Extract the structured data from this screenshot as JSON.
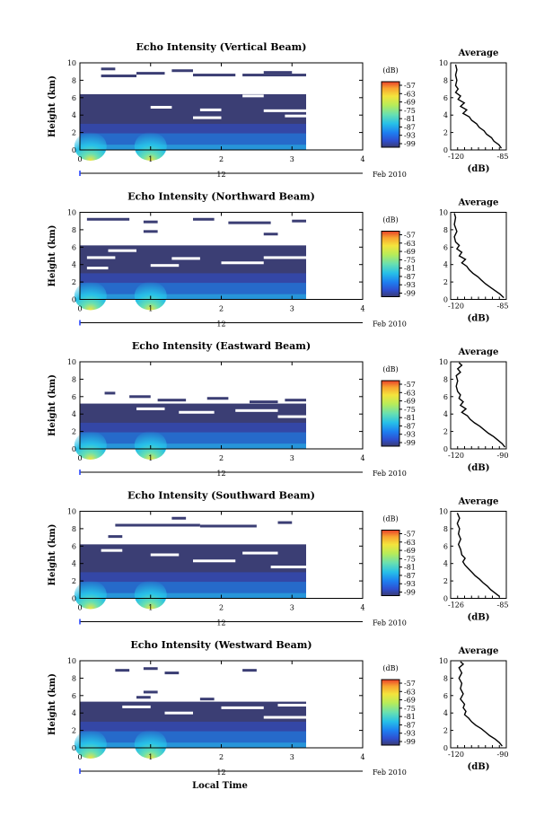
{
  "figure": {
    "xlabel": "Local Time",
    "colors": {
      "background": "#ffffff",
      "base_echo": "#3b3e74",
      "colormap": [
        "#3a3b72",
        "#2f4fd0",
        "#1e7ef0",
        "#27c0e8",
        "#69e0b0",
        "#b6ec5a",
        "#f4e43c",
        "#f8a430",
        "#e8402a"
      ]
    }
  },
  "chart_data": [
    {
      "type": "heatmap",
      "title": "Echo Intensity (Vertical Beam)",
      "ylabel": "Height (km)",
      "ylim": [
        0,
        10
      ],
      "yticks": [
        "0",
        "2",
        "4",
        "6",
        "8",
        "10"
      ],
      "xlim": [
        0,
        4
      ],
      "xticks": [
        "0",
        "1",
        "2",
        "3",
        "4"
      ],
      "data_extent_x": 3.2,
      "day_marker": "12",
      "date_label": "Feb 2010",
      "colorbar": {
        "unit": "(dB)",
        "ticks": [
          "-57",
          "-63",
          "-69",
          "-75",
          "-81",
          "-87",
          "-93",
          "-99"
        ]
      },
      "main_layer_top_km": 6.4,
      "upper_segments": [
        {
          "x0": 0.3,
          "x1": 0.5,
          "y": 9.3
        },
        {
          "x0": 0.3,
          "x1": 0.8,
          "y": 8.5
        },
        {
          "x0": 0.8,
          "x1": 1.2,
          "y": 8.8
        },
        {
          "x0": 1.3,
          "x1": 1.6,
          "y": 9.1
        },
        {
          "x0": 1.6,
          "x1": 2.2,
          "y": 8.6
        },
        {
          "x0": 2.3,
          "x1": 3.2,
          "y": 8.6
        },
        {
          "x0": 2.6,
          "x1": 3.0,
          "y": 8.9
        }
      ],
      "gaps": [
        {
          "x0": 0.7,
          "x1": 1.0,
          "y": 6.7
        },
        {
          "x0": 1.7,
          "x1": 2.0,
          "y": 4.6
        },
        {
          "x0": 1.6,
          "x1": 2.0,
          "y": 3.7
        },
        {
          "x0": 2.6,
          "x1": 3.2,
          "y": 4.5
        },
        {
          "x0": 2.9,
          "x1": 3.2,
          "y": 3.9
        },
        {
          "x0": 1.0,
          "x1": 1.3,
          "y": 4.9
        },
        {
          "x0": 2.3,
          "x1": 2.6,
          "y": 6.2
        }
      ],
      "average_profile": {
        "xlabel": "(dB)",
        "title": "Average",
        "xticks": [
          "-120",
          "-85"
        ],
        "xlim": [
          -125,
          -80
        ],
        "ylim": [
          0,
          10
        ],
        "yticks": [
          "0",
          "2",
          "4",
          "6",
          "8",
          "10"
        ],
        "points": [
          [
            -84,
            0.2
          ],
          [
            -86,
            0.6
          ],
          [
            -90,
            1.0
          ],
          [
            -92,
            1.4
          ],
          [
            -96,
            1.8
          ],
          [
            -98,
            2.2
          ],
          [
            -102,
            2.6
          ],
          [
            -104,
            3.0
          ],
          [
            -108,
            3.4
          ],
          [
            -110,
            3.8
          ],
          [
            -115,
            4.2
          ],
          [
            -112,
            4.6
          ],
          [
            -117,
            5.0
          ],
          [
            -114,
            5.4
          ],
          [
            -119,
            5.8
          ],
          [
            -117,
            6.2
          ],
          [
            -121,
            6.6
          ],
          [
            -119,
            7.0
          ],
          [
            -121,
            7.4
          ],
          [
            -120,
            8.0
          ],
          [
            -121,
            8.6
          ],
          [
            -120,
            9.2
          ],
          [
            -121,
            9.8
          ]
        ]
      }
    },
    {
      "type": "heatmap",
      "title": "Echo Intensity (Northward Beam)",
      "ylabel": "Height (km)",
      "ylim": [
        0,
        10
      ],
      "yticks": [
        "0",
        "2",
        "4",
        "6",
        "8",
        "10"
      ],
      "xlim": [
        0,
        4
      ],
      "xticks": [
        "0",
        "1",
        "2",
        "3",
        "4"
      ],
      "data_extent_x": 3.2,
      "day_marker": "12",
      "date_label": "Feb 2010",
      "colorbar": {
        "unit": "(dB)",
        "ticks": [
          "-57",
          "-63",
          "-69",
          "-75",
          "-81",
          "-87",
          "-93",
          "-99"
        ]
      },
      "main_layer_top_km": 6.2,
      "upper_segments": [
        {
          "x0": 0.1,
          "x1": 0.7,
          "y": 9.2
        },
        {
          "x0": 0.9,
          "x1": 1.1,
          "y": 8.9
        },
        {
          "x0": 0.9,
          "x1": 1.1,
          "y": 7.8
        },
        {
          "x0": 1.6,
          "x1": 1.9,
          "y": 9.2
        },
        {
          "x0": 2.1,
          "x1": 2.7,
          "y": 8.8
        },
        {
          "x0": 2.6,
          "x1": 2.8,
          "y": 7.5
        },
        {
          "x0": 3.0,
          "x1": 3.2,
          "y": 9.0
        }
      ],
      "gaps": [
        {
          "x0": 0.4,
          "x1": 0.8,
          "y": 5.6
        },
        {
          "x0": 0.1,
          "x1": 0.5,
          "y": 4.8
        },
        {
          "x0": 1.3,
          "x1": 1.7,
          "y": 4.7
        },
        {
          "x0": 2.0,
          "x1": 2.6,
          "y": 4.2
        },
        {
          "x0": 2.6,
          "x1": 3.2,
          "y": 4.8
        },
        {
          "x0": 0.1,
          "x1": 0.4,
          "y": 3.6
        },
        {
          "x0": 1.0,
          "x1": 1.4,
          "y": 3.9
        }
      ],
      "average_profile": {
        "xlabel": "(dB)",
        "title": "Average",
        "xticks": [
          "-120",
          "-85"
        ],
        "xlim": [
          -125,
          -80
        ],
        "ylim": [
          0,
          10
        ],
        "yticks": [
          "0",
          "2",
          "4",
          "6",
          "8",
          "10"
        ],
        "points": [
          [
            -82,
            0.2
          ],
          [
            -85,
            0.6
          ],
          [
            -89,
            1.0
          ],
          [
            -93,
            1.4
          ],
          [
            -97,
            1.8
          ],
          [
            -100,
            2.2
          ],
          [
            -103,
            2.6
          ],
          [
            -107,
            3.0
          ],
          [
            -110,
            3.4
          ],
          [
            -112,
            3.8
          ],
          [
            -116,
            4.2
          ],
          [
            -113,
            4.6
          ],
          [
            -118,
            5.0
          ],
          [
            -116,
            5.4
          ],
          [
            -120,
            5.8
          ],
          [
            -118,
            6.2
          ],
          [
            -121,
            6.6
          ],
          [
            -122,
            7.2
          ],
          [
            -120,
            7.8
          ],
          [
            -122,
            8.6
          ],
          [
            -121,
            9.4
          ],
          [
            -122,
            9.9
          ]
        ]
      }
    },
    {
      "type": "heatmap",
      "title": "Echo Intensity (Eastward Beam)",
      "ylabel": "Height (km)",
      "ylim": [
        0,
        10
      ],
      "yticks": [
        "0",
        "2",
        "4",
        "6",
        "8",
        "10"
      ],
      "xlim": [
        0,
        4
      ],
      "xticks": [
        "0",
        "1",
        "2",
        "3",
        "4"
      ],
      "data_extent_x": 3.2,
      "day_marker": "12",
      "date_label": "Feb 2010",
      "colorbar": {
        "unit": "(dB)",
        "ticks": [
          "-57",
          "-63",
          "-69",
          "-75",
          "-81",
          "-87",
          "-93",
          "-99"
        ]
      },
      "main_layer_top_km": 5.2,
      "upper_segments": [
        {
          "x0": 0.35,
          "x1": 0.5,
          "y": 6.4
        },
        {
          "x0": 0.7,
          "x1": 1.0,
          "y": 6.0
        },
        {
          "x0": 1.1,
          "x1": 1.5,
          "y": 5.6
        },
        {
          "x0": 1.8,
          "x1": 2.1,
          "y": 5.8
        },
        {
          "x0": 2.4,
          "x1": 2.8,
          "y": 5.4
        },
        {
          "x0": 2.9,
          "x1": 3.2,
          "y": 5.6
        }
      ],
      "gaps": [
        {
          "x0": 0.8,
          "x1": 1.2,
          "y": 4.6
        },
        {
          "x0": 1.4,
          "x1": 1.9,
          "y": 4.2
        },
        {
          "x0": 2.2,
          "x1": 2.8,
          "y": 4.4
        },
        {
          "x0": 2.8,
          "x1": 3.2,
          "y": 3.7
        }
      ],
      "average_profile": {
        "xlabel": "(dB)",
        "title": "Average",
        "xticks": [
          "-120",
          "-90"
        ],
        "xlim": [
          -125,
          -85
        ],
        "ylim": [
          0,
          10
        ],
        "yticks": [
          "0",
          "2",
          "4",
          "6",
          "8",
          "10"
        ],
        "points": [
          [
            -86,
            0.2
          ],
          [
            -88,
            0.6
          ],
          [
            -91,
            1.0
          ],
          [
            -94,
            1.4
          ],
          [
            -98,
            1.8
          ],
          [
            -101,
            2.2
          ],
          [
            -104,
            2.6
          ],
          [
            -108,
            3.0
          ],
          [
            -111,
            3.4
          ],
          [
            -113,
            3.8
          ],
          [
            -117,
            4.2
          ],
          [
            -114,
            4.6
          ],
          [
            -118,
            5.0
          ],
          [
            -116,
            5.4
          ],
          [
            -119,
            5.8
          ],
          [
            -118,
            6.2
          ],
          [
            -120,
            6.6
          ],
          [
            -121,
            7.2
          ],
          [
            -120,
            7.8
          ],
          [
            -121,
            8.4
          ],
          [
            -118,
            8.8
          ],
          [
            -120,
            9.2
          ],
          [
            -117,
            9.6
          ],
          [
            -119,
            9.9
          ]
        ]
      }
    },
    {
      "type": "heatmap",
      "title": "Echo Intensity (Southward Beam)",
      "ylabel": "Height (km)",
      "ylim": [
        0,
        10
      ],
      "yticks": [
        "0",
        "2",
        "4",
        "6",
        "8",
        "10"
      ],
      "xlim": [
        0,
        4
      ],
      "xticks": [
        "0",
        "1",
        "2",
        "3",
        "4"
      ],
      "data_extent_x": 3.2,
      "day_marker": "12",
      "date_label": "Feb 2010",
      "colorbar": {
        "unit": "(dB)",
        "ticks": [
          "-57",
          "-63",
          "-69",
          "-75",
          "-81",
          "-87",
          "-93",
          "-99"
        ]
      },
      "main_layer_top_km": 6.2,
      "upper_segments": [
        {
          "x0": 0.5,
          "x1": 1.7,
          "y": 8.4
        },
        {
          "x0": 1.3,
          "x1": 1.5,
          "y": 9.2
        },
        {
          "x0": 1.7,
          "x1": 2.5,
          "y": 8.3
        },
        {
          "x0": 2.8,
          "x1": 3.0,
          "y": 8.7
        },
        {
          "x0": 0.4,
          "x1": 0.6,
          "y": 7.1
        }
      ],
      "gaps": [
        {
          "x0": 0.3,
          "x1": 0.6,
          "y": 5.5
        },
        {
          "x0": 1.0,
          "x1": 1.4,
          "y": 5.0
        },
        {
          "x0": 1.6,
          "x1": 2.2,
          "y": 4.3
        },
        {
          "x0": 2.3,
          "x1": 2.8,
          "y": 5.2
        },
        {
          "x0": 2.7,
          "x1": 3.2,
          "y": 3.6
        }
      ],
      "average_profile": {
        "xlabel": "(dB)",
        "title": "Average",
        "xticks": [
          "-126",
          "-85"
        ],
        "xlim": [
          -130,
          -80
        ],
        "ylim": [
          0,
          10
        ],
        "yticks": [
          "0",
          "2",
          "4",
          "6",
          "8",
          "10"
        ],
        "points": [
          [
            -86,
            0.2
          ],
          [
            -90,
            0.6
          ],
          [
            -94,
            1.0
          ],
          [
            -97,
            1.4
          ],
          [
            -101,
            1.8
          ],
          [
            -104,
            2.2
          ],
          [
            -108,
            2.6
          ],
          [
            -111,
            3.0
          ],
          [
            -114,
            3.4
          ],
          [
            -117,
            3.8
          ],
          [
            -119,
            4.2
          ],
          [
            -117,
            4.6
          ],
          [
            -120,
            5.0
          ],
          [
            -121,
            5.6
          ],
          [
            -123,
            6.2
          ],
          [
            -121,
            6.8
          ],
          [
            -123,
            7.4
          ],
          [
            -122,
            8.0
          ],
          [
            -124,
            8.6
          ],
          [
            -122,
            9.2
          ],
          [
            -124,
            9.8
          ]
        ]
      }
    },
    {
      "type": "heatmap",
      "title": "Echo Intensity (Westward Beam)",
      "ylabel": "Height (km)",
      "ylim": [
        0,
        10
      ],
      "yticks": [
        "0",
        "2",
        "4",
        "6",
        "8",
        "10"
      ],
      "xlim": [
        0,
        4
      ],
      "xticks": [
        "0",
        "1",
        "2",
        "3",
        "4"
      ],
      "data_extent_x": 3.2,
      "day_marker": "12",
      "date_label": "Feb 2010",
      "colorbar": {
        "unit": "(dB)",
        "ticks": [
          "-57",
          "-63",
          "-69",
          "-75",
          "-81",
          "-87",
          "-93",
          "-99"
        ]
      },
      "main_layer_top_km": 5.3,
      "upper_segments": [
        {
          "x0": 0.5,
          "x1": 0.7,
          "y": 8.9
        },
        {
          "x0": 0.9,
          "x1": 1.1,
          "y": 9.1
        },
        {
          "x0": 1.2,
          "x1": 1.4,
          "y": 8.6
        },
        {
          "x0": 2.3,
          "x1": 2.5,
          "y": 8.9
        },
        {
          "x0": 0.9,
          "x1": 1.1,
          "y": 6.4
        },
        {
          "x0": 0.8,
          "x1": 1.0,
          "y": 5.8
        },
        {
          "x0": 1.7,
          "x1": 1.9,
          "y": 5.6
        }
      ],
      "gaps": [
        {
          "x0": 0.6,
          "x1": 1.0,
          "y": 4.7
        },
        {
          "x0": 1.2,
          "x1": 1.6,
          "y": 4.0
        },
        {
          "x0": 2.0,
          "x1": 2.6,
          "y": 4.6
        },
        {
          "x0": 2.6,
          "x1": 3.2,
          "y": 3.5
        },
        {
          "x0": 2.8,
          "x1": 3.2,
          "y": 4.9
        }
      ],
      "average_profile": {
        "xlabel": "(dB)",
        "title": "Average",
        "xticks": [
          "-120",
          "-90"
        ],
        "xlim": [
          -125,
          -85
        ],
        "ylim": [
          0,
          10
        ],
        "yticks": [
          "0",
          "2",
          "4",
          "6",
          "8",
          "10"
        ],
        "points": [
          [
            -88,
            0.2
          ],
          [
            -90,
            0.6
          ],
          [
            -93,
            1.0
          ],
          [
            -97,
            1.4
          ],
          [
            -100,
            1.8
          ],
          [
            -103,
            2.2
          ],
          [
            -107,
            2.6
          ],
          [
            -110,
            3.0
          ],
          [
            -112,
            3.4
          ],
          [
            -115,
            3.8
          ],
          [
            -114,
            4.2
          ],
          [
            -116,
            4.6
          ],
          [
            -115,
            5.0
          ],
          [
            -118,
            5.6
          ],
          [
            -116,
            6.2
          ],
          [
            -118,
            6.8
          ],
          [
            -117,
            7.4
          ],
          [
            -119,
            8.0
          ],
          [
            -117,
            8.6
          ],
          [
            -119,
            9.2
          ],
          [
            -116,
            9.6
          ],
          [
            -118,
            9.9
          ]
        ]
      }
    }
  ]
}
